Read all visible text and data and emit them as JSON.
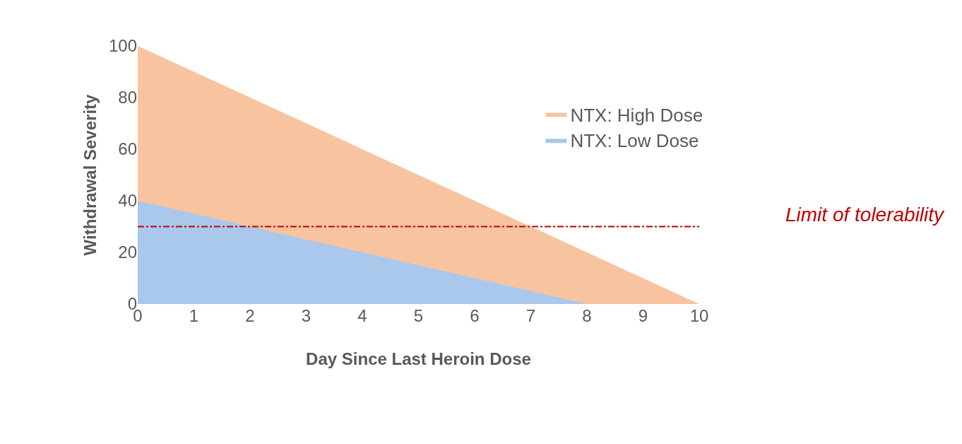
{
  "chart_data": {
    "type": "area",
    "xlabel": "Day Since Last Heroin Dose",
    "ylabel": "Withdrawal Severity",
    "series": [
      {
        "name": "NTX: High Dose",
        "color": "#f8c4a0",
        "x": [
          0,
          10
        ],
        "values": [
          100,
          0
        ]
      },
      {
        "name": "NTX: Low Dose",
        "color": "#a9c8ec",
        "x": [
          0,
          8
        ],
        "values": [
          40,
          0
        ]
      }
    ],
    "xlim": [
      0,
      10
    ],
    "xticks": [
      0,
      1,
      2,
      3,
      4,
      5,
      6,
      7,
      8,
      9,
      10
    ],
    "ylim": [
      0,
      100
    ],
    "yticks": [
      0,
      20,
      40,
      60,
      80,
      100
    ],
    "ref_lines": [
      {
        "axis": "y",
        "value": 30,
        "label": "Limit of tolerability",
        "color": "#c00000",
        "line_style": "dashdot"
      }
    ],
    "legend": "top right"
  }
}
